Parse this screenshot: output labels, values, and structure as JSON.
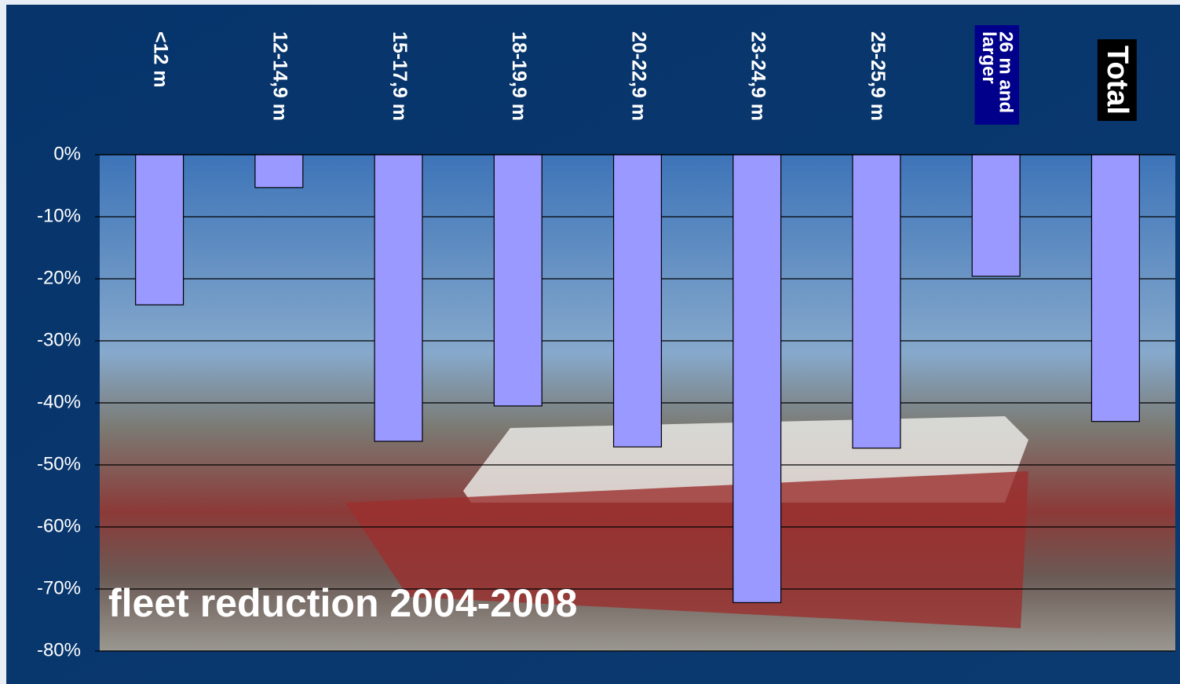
{
  "chart_data": {
    "type": "bar",
    "title": "fleet reduction 2004-2008",
    "categories": [
      "<12 m",
      "12-14,9 m",
      "15-17,9 m",
      "18-19,9 m",
      "20-22,9 m",
      "23-24,9 m",
      "25-25,9 m",
      "26 m and larger",
      "Total"
    ],
    "values": [
      -24.2,
      -5.3,
      -46.2,
      -40.5,
      -47.1,
      -72.2,
      -47.3,
      -19.6,
      -43.0
    ],
    "color": "#9999ff",
    "ylim": [
      -80,
      0
    ],
    "yticks": [
      {
        "value": 0,
        "label": "0%"
      },
      {
        "value": -10,
        "label": "-10%"
      },
      {
        "value": -20,
        "label": "-20%"
      },
      {
        "value": -30,
        "label": "-30%"
      },
      {
        "value": -40,
        "label": "-40%"
      },
      {
        "value": -50,
        "label": "-50%"
      },
      {
        "value": -60,
        "label": "-60%"
      },
      {
        "value": -70,
        "label": "-70%"
      },
      {
        "value": -80,
        "label": "-80%"
      }
    ],
    "grid": true
  }
}
